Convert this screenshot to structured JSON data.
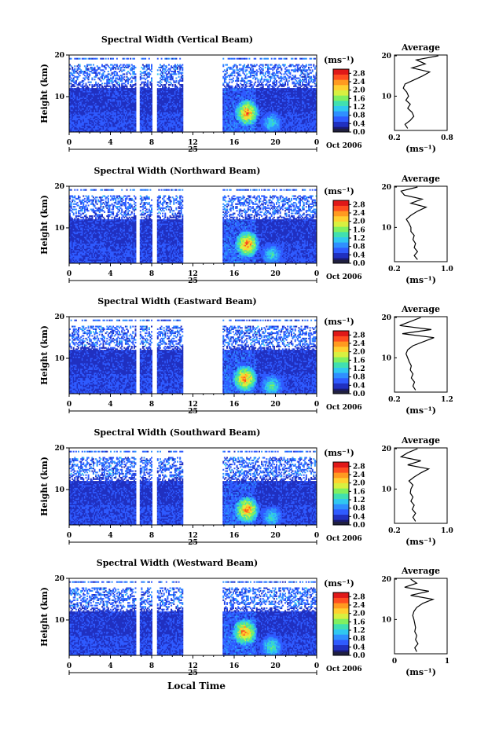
{
  "x_axis_label": "Local Time",
  "colorbar_unit": "(ms⁻¹)",
  "colorbar_ticks": [
    "0.0",
    "0.4",
    "0.8",
    "1.2",
    "1.6",
    "2.0",
    "2.4",
    "2.8"
  ],
  "colors": {
    "colormap": [
      "#1a1a6e",
      "#2030c0",
      "#2f5bff",
      "#2f8fff",
      "#30c8f0",
      "#40e0b0",
      "#80f060",
      "#d8f040",
      "#ffd030",
      "#ff9a20",
      "#ff4e20",
      "#e01818"
    ],
    "colorbar_bottom": "#202040"
  },
  "chart_data": [
    {
      "type": "heatmap",
      "title": "Spectral Width (Vertical Beam)",
      "ylabel": "Height (km)",
      "y_ticks": [
        "20",
        "10"
      ],
      "x_ticks": [
        "0",
        "4",
        "8",
        "12",
        "16",
        "20",
        "0"
      ],
      "date_day": "25",
      "date_month": "Oct 2006",
      "xlim": [
        0,
        24
      ],
      "ylim": [
        1.5,
        20
      ],
      "colorbar": {
        "unit": "(ms⁻¹)",
        "ticks": [
          "0.0",
          "0.4",
          "0.8",
          "1.2",
          "1.6",
          "2.0",
          "2.4",
          "2.8"
        ],
        "range": [
          0,
          3.0
        ]
      },
      "data_gaps_hours": [
        [
          6.5,
          6.9
        ],
        [
          8.1,
          8.5
        ],
        [
          11.0,
          14.9
        ]
      ],
      "hotspots": [
        {
          "x": 17.2,
          "y": 6.0,
          "value": 2.8
        },
        {
          "x": 19.6,
          "y": 3.5,
          "value": 1.6
        }
      ],
      "average": {
        "title": "Average",
        "xlabel": "(ms⁻¹)",
        "xlim": [
          0.2,
          0.8
        ],
        "x_ticks": [
          "0.2",
          "0.8"
        ],
        "y_ticks": [
          "20",
          "10"
        ],
        "profile": [
          [
            0.35,
            2.0
          ],
          [
            0.32,
            3.0
          ],
          [
            0.38,
            4.0
          ],
          [
            0.42,
            5.0
          ],
          [
            0.4,
            6.0
          ],
          [
            0.35,
            7.0
          ],
          [
            0.38,
            8.0
          ],
          [
            0.33,
            9.0
          ],
          [
            0.36,
            10.0
          ],
          [
            0.34,
            11.0
          ],
          [
            0.3,
            12.0
          ],
          [
            0.32,
            13.0
          ],
          [
            0.42,
            14.0
          ],
          [
            0.52,
            15.0
          ],
          [
            0.6,
            16.0
          ],
          [
            0.4,
            17.0
          ],
          [
            0.55,
            18.0
          ],
          [
            0.45,
            19.0
          ],
          [
            0.7,
            20.0
          ]
        ]
      }
    },
    {
      "type": "heatmap",
      "title": "Spectral Width (Northward Beam)",
      "ylabel": "Height (km)",
      "y_ticks": [
        "20",
        "10"
      ],
      "x_ticks": [
        "0",
        "4",
        "8",
        "12",
        "16",
        "20",
        "0"
      ],
      "date_day": "25",
      "date_month": "Oct 2006",
      "xlim": [
        0,
        24
      ],
      "ylim": [
        1.5,
        20
      ],
      "colorbar": {
        "unit": "(ms⁻¹)",
        "ticks": [
          "0.0",
          "0.4",
          "0.8",
          "1.2",
          "1.6",
          "2.0",
          "2.4",
          "2.8"
        ],
        "range": [
          0,
          3.0
        ]
      },
      "data_gaps_hours": [
        [
          6.5,
          6.9
        ],
        [
          8.1,
          8.5
        ],
        [
          11.0,
          14.9
        ]
      ],
      "hotspots": [
        {
          "x": 17.2,
          "y": 6.0,
          "value": 2.8
        },
        {
          "x": 19.6,
          "y": 3.5,
          "value": 1.6
        }
      ],
      "average": {
        "title": "Average",
        "xlabel": "(ms⁻¹)",
        "xlim": [
          0.2,
          1.0
        ],
        "x_ticks": [
          "0.2",
          "1.0"
        ],
        "y_ticks": [
          "20",
          "10"
        ],
        "profile": [
          [
            0.55,
            2.0
          ],
          [
            0.5,
            3.0
          ],
          [
            0.55,
            4.0
          ],
          [
            0.5,
            5.0
          ],
          [
            0.52,
            6.0
          ],
          [
            0.48,
            7.0
          ],
          [
            0.5,
            8.0
          ],
          [
            0.45,
            9.0
          ],
          [
            0.45,
            10.0
          ],
          [
            0.42,
            11.0
          ],
          [
            0.38,
            12.0
          ],
          [
            0.45,
            13.0
          ],
          [
            0.55,
            14.0
          ],
          [
            0.68,
            15.0
          ],
          [
            0.45,
            16.0
          ],
          [
            0.62,
            17.0
          ],
          [
            0.35,
            18.0
          ],
          [
            0.3,
            19.0
          ],
          [
            0.55,
            20.0
          ]
        ]
      }
    },
    {
      "type": "heatmap",
      "title": "Spectral Width (Eastward Beam)",
      "ylabel": "Height (km)",
      "y_ticks": [
        "20",
        "10"
      ],
      "x_ticks": [
        "0",
        "4",
        "8",
        "12",
        "16",
        "20",
        "0"
      ],
      "date_day": "25",
      "date_month": "Oct 2006",
      "xlim": [
        0,
        24
      ],
      "ylim": [
        1.5,
        20
      ],
      "colorbar": {
        "unit": "(ms⁻¹)",
        "ticks": [
          "0.0",
          "0.4",
          "0.8",
          "1.2",
          "1.6",
          "2.0",
          "2.4",
          "2.8"
        ],
        "range": [
          0,
          3.0
        ]
      },
      "data_gaps_hours": [
        [
          6.5,
          6.9
        ],
        [
          8.1,
          8.5
        ],
        [
          11.0,
          14.9
        ]
      ],
      "hotspots": [
        {
          "x": 17.0,
          "y": 5.0,
          "value": 2.8
        },
        {
          "x": 19.6,
          "y": 3.2,
          "value": 1.8
        }
      ],
      "average": {
        "title": "Average",
        "xlabel": "(ms⁻¹)",
        "xlim": [
          0.2,
          1.2
        ],
        "x_ticks": [
          "0.2",
          "1.2"
        ],
        "y_ticks": [
          "20",
          "10"
        ],
        "profile": [
          [
            0.6,
            2.0
          ],
          [
            0.55,
            3.0
          ],
          [
            0.58,
            4.0
          ],
          [
            0.52,
            5.0
          ],
          [
            0.55,
            6.0
          ],
          [
            0.5,
            7.0
          ],
          [
            0.52,
            8.0
          ],
          [
            0.48,
            9.0
          ],
          [
            0.45,
            10.0
          ],
          [
            0.42,
            11.0
          ],
          [
            0.45,
            12.0
          ],
          [
            0.55,
            13.0
          ],
          [
            0.75,
            14.0
          ],
          [
            0.95,
            15.0
          ],
          [
            0.35,
            16.0
          ],
          [
            0.9,
            17.0
          ],
          [
            0.3,
            18.0
          ],
          [
            0.5,
            19.0
          ],
          [
            0.7,
            20.0
          ]
        ]
      }
    },
    {
      "type": "heatmap",
      "title": "Spectral Width (Southward Beam)",
      "ylabel": "Height (km)",
      "y_ticks": [
        "20",
        "10"
      ],
      "x_ticks": [
        "0",
        "4",
        "8",
        "12",
        "16",
        "20",
        "0"
      ],
      "date_day": "25",
      "date_month": "Oct 2006",
      "xlim": [
        0,
        24
      ],
      "ylim": [
        1.5,
        20
      ],
      "colorbar": {
        "unit": "(ms⁻¹)",
        "ticks": [
          "0.0",
          "0.4",
          "0.8",
          "1.2",
          "1.6",
          "2.0",
          "2.4",
          "2.8"
        ],
        "range": [
          0,
          3.0
        ]
      },
      "data_gaps_hours": [
        [
          6.5,
          6.9
        ],
        [
          8.1,
          8.5
        ],
        [
          11.0,
          14.9
        ]
      ],
      "hotspots": [
        {
          "x": 17.2,
          "y": 5.0,
          "value": 2.8
        },
        {
          "x": 19.6,
          "y": 3.2,
          "value": 1.6
        }
      ],
      "average": {
        "title": "Average",
        "xlabel": "(ms⁻¹)",
        "xlim": [
          0.2,
          1.0
        ],
        "x_ticks": [
          "0.2",
          "1.0"
        ],
        "y_ticks": [
          "20",
          "10"
        ],
        "profile": [
          [
            0.52,
            2.0
          ],
          [
            0.48,
            3.0
          ],
          [
            0.52,
            4.0
          ],
          [
            0.47,
            5.0
          ],
          [
            0.5,
            6.0
          ],
          [
            0.45,
            7.0
          ],
          [
            0.48,
            8.0
          ],
          [
            0.44,
            9.0
          ],
          [
            0.45,
            10.0
          ],
          [
            0.48,
            11.0
          ],
          [
            0.42,
            12.0
          ],
          [
            0.5,
            13.0
          ],
          [
            0.6,
            14.0
          ],
          [
            0.72,
            15.0
          ],
          [
            0.4,
            16.0
          ],
          [
            0.6,
            17.0
          ],
          [
            0.3,
            18.0
          ],
          [
            0.4,
            19.0
          ],
          [
            0.55,
            20.0
          ]
        ]
      }
    },
    {
      "type": "heatmap",
      "title": "Spectral Width (Westward Beam)",
      "ylabel": "Height (km)",
      "y_ticks": [
        "20",
        "10"
      ],
      "x_ticks": [
        "0",
        "4",
        "8",
        "12",
        "16",
        "20",
        "0"
      ],
      "date_day": "25",
      "date_month": "Oct 2006",
      "xlim": [
        0,
        24
      ],
      "ylim": [
        1.5,
        20
      ],
      "colorbar": {
        "unit": "(ms⁻¹)",
        "ticks": [
          "0.0",
          "0.4",
          "0.8",
          "1.2",
          "1.6",
          "2.0",
          "2.4",
          "2.8"
        ],
        "range": [
          0,
          3.0
        ]
      },
      "data_gaps_hours": [
        [
          6.5,
          6.9
        ],
        [
          8.1,
          8.5
        ],
        [
          11.0,
          14.9
        ]
      ],
      "hotspots": [
        {
          "x": 17.0,
          "y": 7.0,
          "value": 2.8
        },
        {
          "x": 19.6,
          "y": 3.4,
          "value": 1.8
        }
      ],
      "average": {
        "title": "Average",
        "xlabel": "(ms⁻¹)",
        "xlim": [
          0,
          1.3
        ],
        "x_ticks": [
          "0",
          "1"
        ],
        "y_ticks": [
          "20",
          "10"
        ],
        "profile": [
          [
            0.55,
            2.0
          ],
          [
            0.5,
            3.0
          ],
          [
            0.58,
            4.0
          ],
          [
            0.52,
            5.0
          ],
          [
            0.55,
            6.0
          ],
          [
            0.5,
            7.0
          ],
          [
            0.52,
            8.0
          ],
          [
            0.5,
            9.0
          ],
          [
            0.48,
            10.0
          ],
          [
            0.45,
            11.0
          ],
          [
            0.48,
            12.0
          ],
          [
            0.55,
            13.0
          ],
          [
            0.7,
            14.0
          ],
          [
            0.95,
            15.0
          ],
          [
            0.4,
            16.0
          ],
          [
            0.85,
            17.0
          ],
          [
            0.25,
            18.0
          ],
          [
            0.55,
            19.0
          ],
          [
            0.4,
            20.0
          ]
        ]
      }
    }
  ]
}
